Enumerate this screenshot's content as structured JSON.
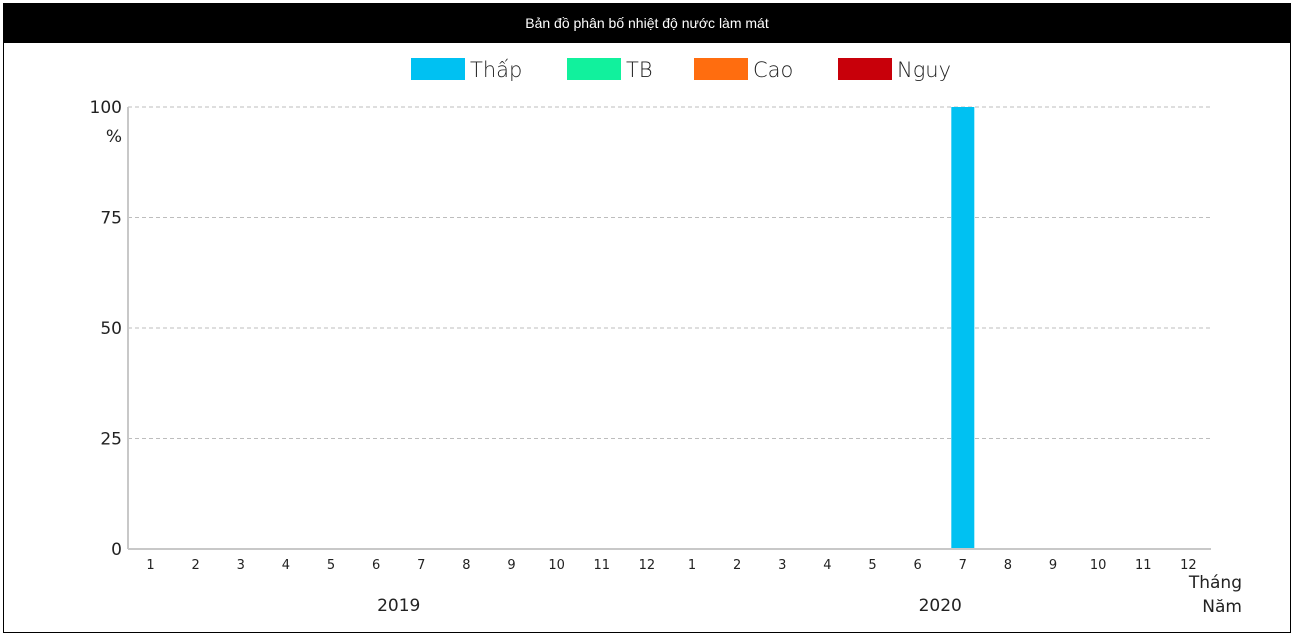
{
  "window": {
    "title": "Bản đồ phân bố nhiệt độ nước làm mát"
  },
  "colors": {
    "thap": "#00c1f2",
    "tb": "#11f19d",
    "cao": "#ff6d0f",
    "nguy": "#c8000a",
    "grid": "#bdbdbd",
    "axis": "#c8c8c8",
    "title_bg": "#000000"
  },
  "chart_data": {
    "type": "bar",
    "title": "Bản đồ phân bố nhiệt độ nước làm mát",
    "y_unit": "%",
    "x_axis_title_month": "Tháng",
    "x_axis_title_year": "Năm",
    "ylim": [
      0,
      100
    ],
    "y_ticks": [
      "0",
      "25",
      "50",
      "75",
      "100"
    ],
    "grid": true,
    "legend_position": "top",
    "years": [
      {
        "label": "2019",
        "months": [
          "1",
          "2",
          "3",
          "4",
          "5",
          "6",
          "7",
          "8",
          "9",
          "10",
          "11",
          "12"
        ]
      },
      {
        "label": "2020",
        "months": [
          "1",
          "2",
          "3",
          "4",
          "5",
          "6",
          "7",
          "8",
          "9",
          "10",
          "11",
          "12"
        ]
      }
    ],
    "series": [
      {
        "name": "Thấp",
        "color": "#00c1f2",
        "values": [
          0,
          0,
          0,
          0,
          0,
          0,
          0,
          0,
          0,
          0,
          0,
          0,
          0,
          0,
          0,
          0,
          0,
          0,
          100,
          0,
          0,
          0,
          0,
          0
        ]
      },
      {
        "name": "TB",
        "color": "#11f19d",
        "values": [
          0,
          0,
          0,
          0,
          0,
          0,
          0,
          0,
          0,
          0,
          0,
          0,
          0,
          0,
          0,
          0,
          0,
          0,
          0,
          0,
          0,
          0,
          0,
          0
        ]
      },
      {
        "name": "Cao",
        "color": "#ff6d0f",
        "values": [
          0,
          0,
          0,
          0,
          0,
          0,
          0,
          0,
          0,
          0,
          0,
          0,
          0,
          0,
          0,
          0,
          0,
          0,
          0,
          0,
          0,
          0,
          0,
          0
        ]
      },
      {
        "name": "Nguy",
        "color": "#c8000a",
        "values": [
          0,
          0,
          0,
          0,
          0,
          0,
          0,
          0,
          0,
          0,
          0,
          0,
          0,
          0,
          0,
          0,
          0,
          0,
          0,
          0,
          0,
          0,
          0,
          0
        ]
      }
    ]
  }
}
